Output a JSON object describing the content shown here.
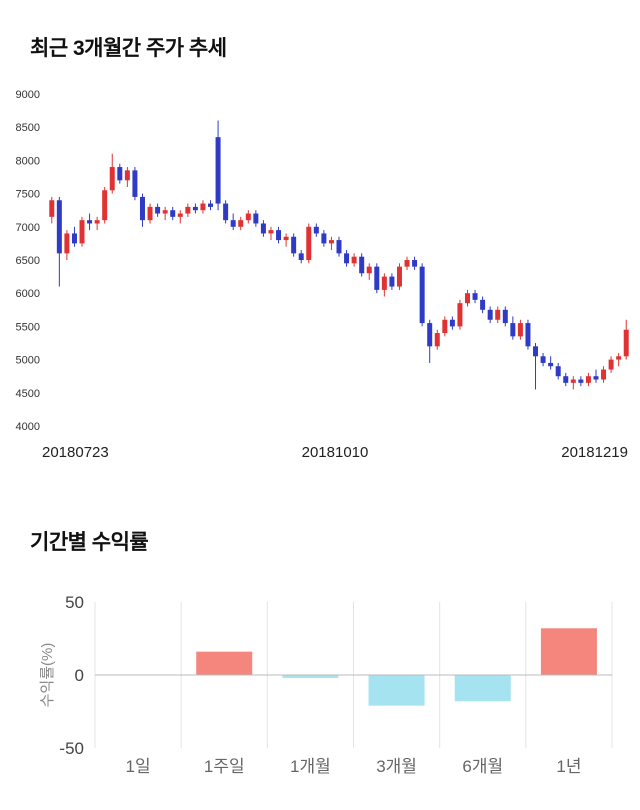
{
  "chart_data": [
    {
      "type": "candlestick",
      "title": "최근 3개월간 주가 추세",
      "ylim": [
        4000,
        9000
      ],
      "y_ticks": [
        9000,
        8500,
        8000,
        7500,
        7000,
        6500,
        6000,
        5500,
        5000,
        4500,
        4000
      ],
      "x_labels": [
        "20180723",
        "20181010",
        "20181219"
      ],
      "legend_position": "none",
      "grid": false,
      "colors": {
        "up": "#e03232",
        "down": "#2f3bc7",
        "tick_text": "#333333",
        "date_text": "#222222"
      },
      "candles_format": [
        "open",
        "high",
        "low",
        "close"
      ],
      "candles": [
        [
          7150,
          7450,
          7050,
          7400
        ],
        [
          7400,
          7450,
          6100,
          6600
        ],
        [
          6600,
          6950,
          6500,
          6900
        ],
        [
          6900,
          7000,
          6700,
          6750
        ],
        [
          6750,
          7150,
          6700,
          7100
        ],
        [
          7100,
          7200,
          6950,
          7050
        ],
        [
          7050,
          7150,
          6950,
          7100
        ],
        [
          7100,
          7600,
          7050,
          7550
        ],
        [
          7550,
          8100,
          7500,
          7900
        ],
        [
          7900,
          7950,
          7650,
          7700
        ],
        [
          7700,
          7900,
          7600,
          7850
        ],
        [
          7850,
          7900,
          7400,
          7450
        ],
        [
          7450,
          7500,
          7000,
          7100
        ],
        [
          7100,
          7350,
          7050,
          7300
        ],
        [
          7300,
          7350,
          7150,
          7200
        ],
        [
          7200,
          7300,
          7100,
          7250
        ],
        [
          7250,
          7300,
          7100,
          7150
        ],
        [
          7150,
          7250,
          7050,
          7200
        ],
        [
          7200,
          7350,
          7150,
          7300
        ],
        [
          7300,
          7350,
          7200,
          7250
        ],
        [
          7250,
          7400,
          7200,
          7350
        ],
        [
          7350,
          7400,
          7250,
          7300
        ],
        [
          8350,
          8600,
          7250,
          7350
        ],
        [
          7350,
          7400,
          7050,
          7100
        ],
        [
          7100,
          7200,
          6950,
          7000
        ],
        [
          7000,
          7150,
          6950,
          7100
        ],
        [
          7100,
          7250,
          7050,
          7200
        ],
        [
          7200,
          7250,
          7000,
          7050
        ],
        [
          7050,
          7100,
          6850,
          6900
        ],
        [
          6900,
          7000,
          6800,
          6950
        ],
        [
          6950,
          7000,
          6750,
          6800
        ],
        [
          6800,
          6900,
          6700,
          6850
        ],
        [
          6850,
          6900,
          6550,
          6600
        ],
        [
          6600,
          6650,
          6450,
          6500
        ],
        [
          6500,
          7050,
          6450,
          7000
        ],
        [
          7000,
          7050,
          6850,
          6900
        ],
        [
          6900,
          6950,
          6700,
          6750
        ],
        [
          6750,
          6850,
          6650,
          6800
        ],
        [
          6800,
          6850,
          6550,
          6600
        ],
        [
          6600,
          6650,
          6400,
          6450
        ],
        [
          6450,
          6600,
          6400,
          6550
        ],
        [
          6550,
          6600,
          6250,
          6300
        ],
        [
          6300,
          6450,
          6200,
          6400
        ],
        [
          6400,
          6450,
          6000,
          6050
        ],
        [
          6050,
          6300,
          5950,
          6250
        ],
        [
          6250,
          6300,
          6050,
          6100
        ],
        [
          6100,
          6450,
          6050,
          6400
        ],
        [
          6400,
          6550,
          6350,
          6500
        ],
        [
          6500,
          6550,
          6350,
          6400
        ],
        [
          6400,
          6450,
          5500,
          5550
        ],
        [
          5550,
          5600,
          4950,
          5200
        ],
        [
          5200,
          5450,
          5150,
          5400
        ],
        [
          5400,
          5650,
          5350,
          5600
        ],
        [
          5600,
          5650,
          5450,
          5500
        ],
        [
          5500,
          5900,
          5450,
          5850
        ],
        [
          5850,
          6050,
          5800,
          6000
        ],
        [
          6000,
          6050,
          5850,
          5900
        ],
        [
          5900,
          5950,
          5700,
          5750
        ],
        [
          5750,
          5800,
          5550,
          5600
        ],
        [
          5600,
          5800,
          5550,
          5750
        ],
        [
          5750,
          5800,
          5500,
          5550
        ],
        [
          5550,
          5650,
          5300,
          5350
        ],
        [
          5350,
          5600,
          5300,
          5550
        ],
        [
          5550,
          5600,
          5150,
          5200
        ],
        [
          5200,
          5250,
          4550,
          5050
        ],
        [
          5050,
          5100,
          4900,
          4950
        ],
        [
          4950,
          5050,
          4850,
          4900
        ],
        [
          4900,
          4950,
          4700,
          4750
        ],
        [
          4750,
          4800,
          4600,
          4650
        ],
        [
          4650,
          4750,
          4550,
          4700
        ],
        [
          4700,
          4750,
          4600,
          4650
        ],
        [
          4650,
          4800,
          4600,
          4750
        ],
        [
          4750,
          4850,
          4650,
          4700
        ],
        [
          4700,
          4900,
          4650,
          4850
        ],
        [
          4850,
          5050,
          4800,
          5000
        ],
        [
          5000,
          5100,
          4900,
          5050
        ],
        [
          5050,
          5600,
          5000,
          5450
        ]
      ]
    },
    {
      "type": "bar",
      "title": "기간별 수익률",
      "ylabel": "수익률(%)",
      "ylim": [
        -50,
        50
      ],
      "y_ticks": [
        50,
        0,
        -50
      ],
      "categories": [
        "1일",
        "1주일",
        "1개월",
        "3개월",
        "6개월",
        "1년"
      ],
      "values": [
        0,
        16,
        -2,
        -21,
        -18,
        32
      ],
      "grid": true,
      "legend_position": "none",
      "colors": {
        "positive": "#f4867e",
        "negative": "#a6e3f0",
        "zero_line": "#bbbbbb",
        "separator": "#e4e4e4",
        "tick_text": "#444444",
        "category_text": "#666666",
        "ylabel_text": "#888888"
      }
    }
  ]
}
